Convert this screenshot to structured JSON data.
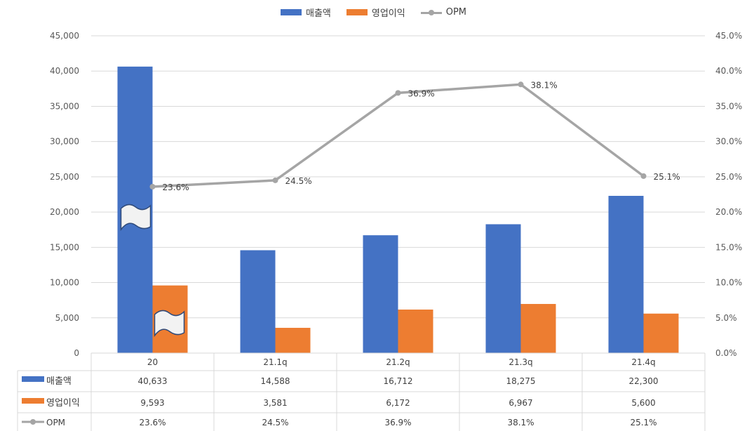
{
  "chart_data": {
    "type": "bar",
    "categories": [
      "20",
      "21.1q",
      "21.2q",
      "21.3q",
      "21.4q"
    ],
    "series": [
      {
        "name": "매출액",
        "kind": "bar",
        "axis": "left",
        "color": "#4472c4",
        "values": [
          40633,
          14588,
          16712,
          18275,
          22300
        ],
        "labels": [
          "40,633",
          "14,588",
          "16,712",
          "18,275",
          "22,300"
        ]
      },
      {
        "name": "영업이익",
        "kind": "bar",
        "axis": "left",
        "color": "#ed7d31",
        "values": [
          9593,
          3581,
          6172,
          6967,
          5600
        ],
        "labels": [
          "9,593",
          "3,581",
          "6,172",
          "6,967",
          "5,600"
        ]
      },
      {
        "name": "OPM",
        "kind": "line",
        "axis": "right",
        "color": "#a5a5a5",
        "values": [
          23.6,
          24.5,
          36.9,
          38.1,
          25.1
        ],
        "labels": [
          "23.6%",
          "24.5%",
          "36.9%",
          "38.1%",
          "25.1%"
        ]
      }
    ],
    "y_left": {
      "range": [
        0,
        45000
      ],
      "ticks": [
        "0",
        "5,000",
        "10,000",
        "15,000",
        "20,000",
        "25,000",
        "30,000",
        "35,000",
        "40,000",
        "45,000"
      ]
    },
    "y_right": {
      "range": [
        0,
        45
      ],
      "ticks": [
        "0.0%",
        "5.0%",
        "10.0%",
        "15.0%",
        "20.0%",
        "25.0%",
        "30.0%",
        "35.0%",
        "40.0%",
        "45.0%"
      ]
    },
    "grid": true,
    "legend_position": "top",
    "data_table": true,
    "axis_break_on_first_category": true
  }
}
